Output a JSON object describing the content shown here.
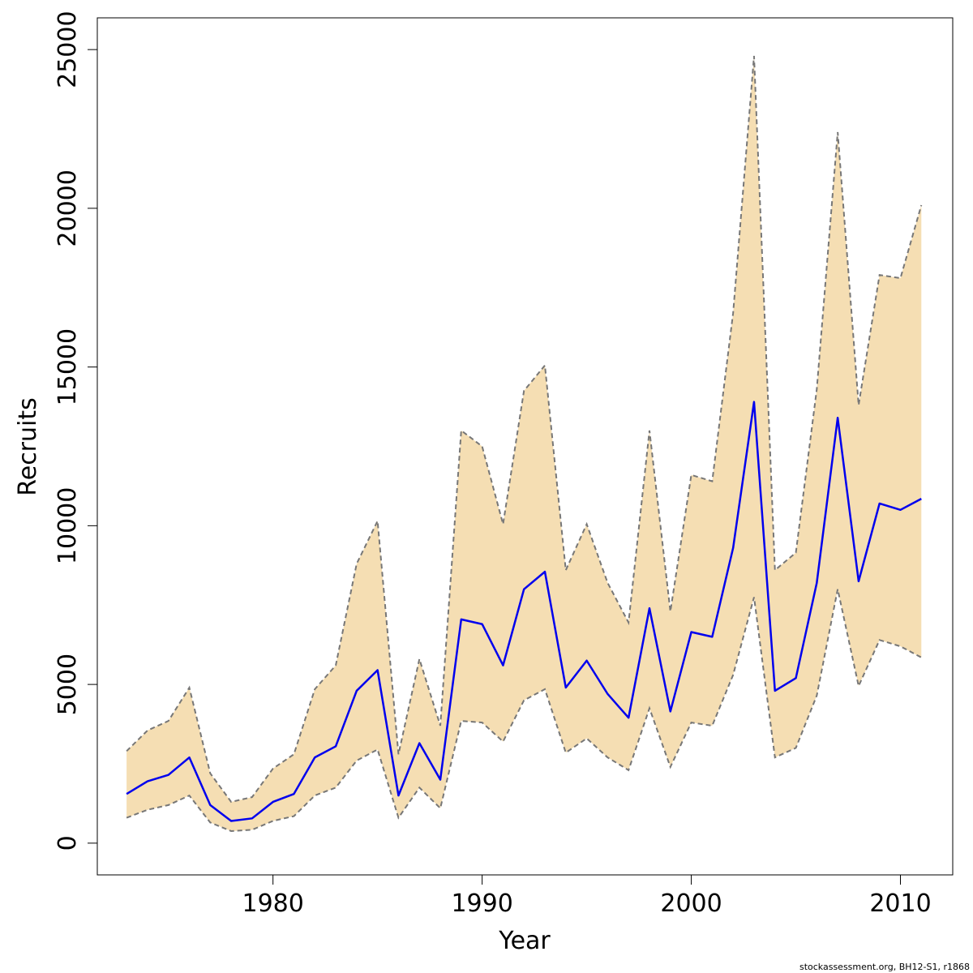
{
  "chart_data": {
    "type": "line",
    "xlabel": "Year",
    "ylabel": "Recruits",
    "xlim": [
      1971.6,
      2012.5
    ],
    "ylim": [
      -1000,
      26000
    ],
    "x_ticks": [
      1980,
      1990,
      2000,
      2010
    ],
    "y_ticks": [
      0,
      5000,
      10000,
      15000,
      20000,
      25000
    ],
    "grid": false,
    "x": [
      1973,
      1974,
      1975,
      1976,
      1977,
      1978,
      1979,
      1980,
      1981,
      1982,
      1983,
      1984,
      1985,
      1986,
      1987,
      1988,
      1989,
      1990,
      1991,
      1992,
      1993,
      1994,
      1995,
      1996,
      1997,
      1998,
      1999,
      2000,
      2001,
      2002,
      2003,
      2004,
      2005,
      2006,
      2007,
      2008,
      2009,
      2010,
      2011
    ],
    "series": [
      {
        "role": "estimate",
        "color": "#0000ee",
        "values": [
          1550,
          1950,
          2150,
          2700,
          1200,
          700,
          780,
          1300,
          1550,
          2700,
          3050,
          4800,
          5450,
          1500,
          3150,
          2000,
          7050,
          6900,
          5600,
          8000,
          8550,
          4900,
          5750,
          4700,
          3950,
          7400,
          4150,
          6650,
          6500,
          9300,
          13900,
          4800,
          5200,
          8200,
          13400,
          8250,
          10700,
          10500,
          10850
        ]
      },
      {
        "role": "upper",
        "color": "#777777",
        "values": [
          2900,
          3550,
          3850,
          4900,
          2200,
          1300,
          1450,
          2350,
          2800,
          4850,
          5600,
          8800,
          10150,
          2800,
          5800,
          3700,
          13000,
          12500,
          10050,
          14250,
          15050,
          8600,
          10050,
          8200,
          6950,
          13000,
          7300,
          11600,
          11400,
          16700,
          24800,
          8600,
          9150,
          14300,
          22400,
          13800,
          17900,
          17800,
          20100
        ]
      },
      {
        "role": "lower",
        "color": "#777777",
        "values": [
          800,
          1050,
          1200,
          1500,
          650,
          380,
          420,
          700,
          850,
          1500,
          1750,
          2600,
          2950,
          800,
          1750,
          1100,
          3850,
          3800,
          3200,
          4500,
          4850,
          2850,
          3300,
          2700,
          2300,
          4250,
          2400,
          3800,
          3700,
          5300,
          7750,
          2700,
          3000,
          4650,
          8000,
          4950,
          6400,
          6200,
          5850
        ]
      }
    ],
    "band_fill": "#f5deb3",
    "credit": "stockassessment.org, BH12-S1, r1868"
  }
}
